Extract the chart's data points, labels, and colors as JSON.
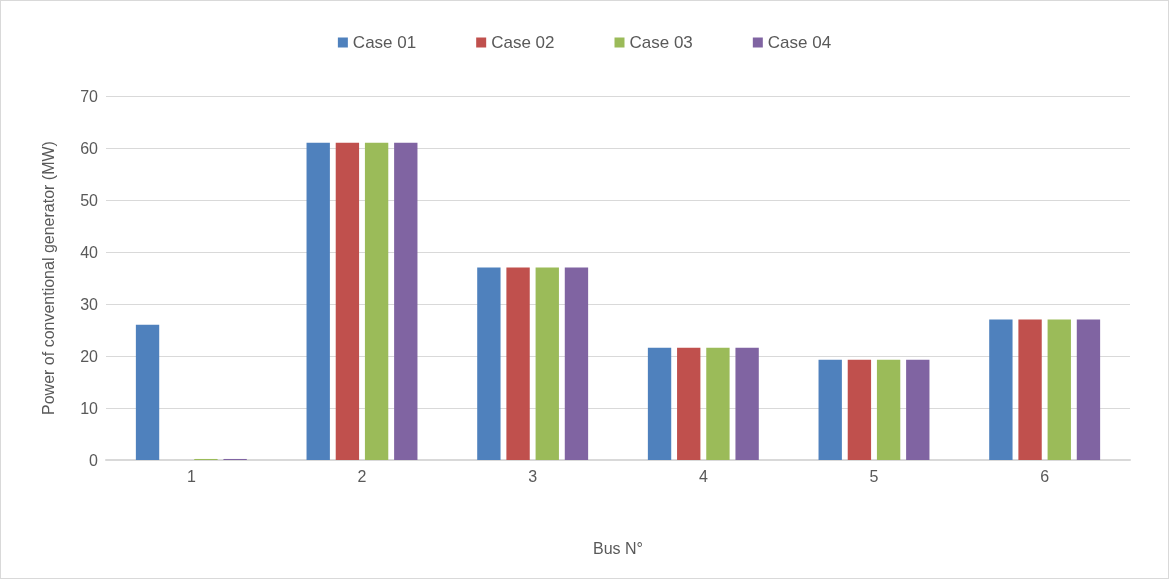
{
  "chart_data": {
    "type": "bar",
    "xlabel": "Bus N°",
    "ylabel": "Power of conventional generator (MW)",
    "categories": [
      "1",
      "2",
      "3",
      "4",
      "5",
      "6"
    ],
    "series": [
      {
        "name": "Case 01",
        "color": "#4f81bd",
        "values": [
          26,
          61,
          37,
          21.6,
          19.3,
          27
        ]
      },
      {
        "name": "Case 02",
        "color": "#c0504d",
        "values": [
          0,
          61,
          37,
          21.6,
          19.3,
          27
        ]
      },
      {
        "name": "Case 03",
        "color": "#9bbb59",
        "values": [
          0.2,
          61,
          37,
          21.6,
          19.3,
          27
        ]
      },
      {
        "name": "Case 04",
        "color": "#8064a2",
        "values": [
          0.2,
          61,
          37,
          21.6,
          19.3,
          27
        ]
      }
    ],
    "ylim": [
      0,
      70
    ],
    "yticks": [
      0,
      10,
      20,
      30,
      40,
      50,
      60,
      70
    ],
    "grid": "y",
    "legend": "top"
  }
}
